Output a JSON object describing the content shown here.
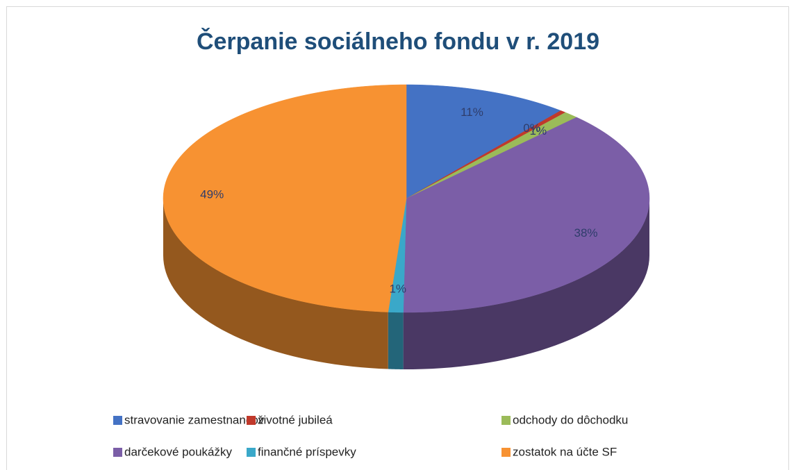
{
  "chart_data": {
    "type": "pie3d",
    "title": "Čerpanie sociálneho fondu v r. 2019",
    "categories": [
      "stravovanie zamestnancov",
      "životné jubileá",
      "odchody do dôchodku",
      "darčekové poukážky",
      "finančné príspevky",
      "zostatok na účte SF"
    ],
    "values": [
      11,
      0.4,
      1,
      38,
      1,
      49
    ],
    "value_labels": [
      "11%",
      "0%",
      "1%",
      "38%",
      "1%",
      "49%"
    ],
    "colors": [
      "#4472c4",
      "#c0392b",
      "#9bbb59",
      "#7b5ea7",
      "#3aa8c9",
      "#f79232"
    ],
    "legend": "bottom"
  }
}
